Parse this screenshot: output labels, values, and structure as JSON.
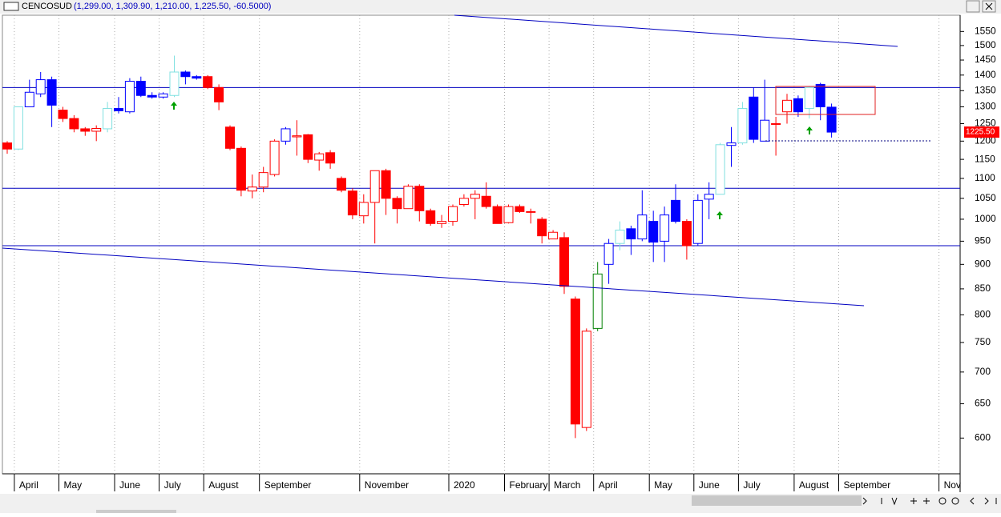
{
  "chart_data": {
    "type": "candlestick",
    "title": "CENCOSUD",
    "subtitle": "(1,299.00, 1,309.90, 1,210.00, 1,225.50, -60.5000)",
    "categories": [
      null,
      "April",
      null,
      null,
      null,
      "May",
      null,
      null,
      null,
      null,
      "June",
      null,
      null,
      null,
      "July",
      null,
      null,
      null,
      "August",
      null,
      null,
      null,
      null,
      "September",
      null,
      null,
      null,
      null,
      null,
      null,
      null,
      null,
      "November",
      null,
      null,
      null,
      null,
      null,
      null,
      null,
      "2020",
      null,
      null,
      null,
      null,
      "February",
      null,
      null,
      null,
      "March",
      null,
      null,
      null,
      "April",
      null,
      null,
      null,
      null,
      "May",
      null,
      null,
      null,
      "June",
      null,
      null,
      null,
      "July",
      null,
      null,
      null,
      null,
      "August",
      null,
      null,
      null,
      "September",
      null,
      null,
      null,
      null,
      null,
      null,
      null,
      null,
      "Nov",
      null
    ],
    "open": [
      1195,
      1178,
      1300,
      1340,
      1385,
      1290,
      1265,
      1235,
      1228,
      1235,
      1295,
      1285,
      1380,
      1335,
      1330,
      1335,
      1410,
      1395,
      1395,
      1360,
      1240,
      1180,
      1068,
      1078,
      1110,
      1200,
      1212,
      1218,
      1148,
      1168,
      1100,
      1068,
      1008,
      1040,
      1120,
      1050,
      1025,
      1080,
      1020,
      990,
      995,
      1035,
      1050,
      1055,
      1030,
      992,
      1030,
      1018,
      1000,
      955,
      958,
      830,
      615,
      775,
      900,
      945,
      978,
      955,
      995,
      950,
      1045,
      995,
      945,
      1048,
      1060,
      1188,
      1195,
      1330,
      1200,
      1250,
      1285,
      1325,
      1295,
      1370,
      1299,
      null,
      null,
      null,
      null,
      null,
      null,
      null,
      null,
      null,
      null,
      null
    ],
    "high": [
      1200,
      1300,
      1385,
      1410,
      1395,
      1300,
      1275,
      1240,
      1245,
      1315,
      1330,
      1390,
      1395,
      1345,
      1345,
      1465,
      1415,
      1400,
      1400,
      1370,
      1245,
      1185,
      1110,
      1130,
      1205,
      1240,
      1260,
      1220,
      1170,
      1175,
      1105,
      1075,
      1060,
      1120,
      1125,
      1055,
      1085,
      1085,
      1025,
      1010,
      1035,
      1060,
      1070,
      1090,
      1035,
      1035,
      1035,
      1025,
      1005,
      975,
      970,
      835,
      775,
      905,
      955,
      995,
      985,
      1070,
      1020,
      1030,
      1085,
      1000,
      1060,
      1090,
      1195,
      1240,
      1315,
      1360,
      1385,
      1270,
      1340,
      1335,
      1365,
      1375,
      1309.9,
      null,
      null,
      null,
      null,
      null,
      null,
      null,
      null,
      null,
      null,
      null
    ],
    "low": [
      1165,
      1175,
      1300,
      1330,
      1240,
      1255,
      1225,
      1215,
      1200,
      1225,
      1280,
      1280,
      1330,
      1325,
      1325,
      1330,
      1370,
      1385,
      1355,
      1290,
      1175,
      1055,
      1050,
      1065,
      1105,
      1190,
      1160,
      1140,
      1120,
      1125,
      1065,
      1000,
      990,
      945,
      1010,
      990,
      1025,
      995,
      985,
      980,
      985,
      1030,
      1000,
      1025,
      990,
      990,
      1015,
      990,
      945,
      955,
      840,
      600,
      610,
      770,
      860,
      930,
      920,
      950,
      905,
      905,
      990,
      910,
      940,
      1000,
      1060,
      1130,
      1190,
      1195,
      1200,
      1160,
      1250,
      1270,
      1265,
      1260,
      1210,
      null,
      null,
      null,
      null,
      null,
      null,
      null,
      null,
      null,
      null,
      null
    ],
    "close": [
      1178,
      1300,
      1345,
      1385,
      1305,
      1265,
      1235,
      1228,
      1236,
      1295,
      1288,
      1380,
      1335,
      1330,
      1340,
      1410,
      1395,
      1390,
      1360,
      1315,
      1180,
      1070,
      1078,
      1115,
      1200,
      1235,
      1215,
      1150,
      1165,
      1140,
      1070,
      1010,
      1040,
      1120,
      1050,
      1025,
      1080,
      1020,
      990,
      995,
      1030,
      1050,
      1060,
      1030,
      990,
      1030,
      1018,
      1017,
      962,
      970,
      855,
      620,
      770,
      880,
      945,
      975,
      955,
      1010,
      948,
      1010,
      995,
      940,
      1045,
      1060,
      1190,
      1195,
      1295,
      1205,
      1260,
      1248,
      1320,
      1285,
      1360,
      1300,
      1225.5,
      null,
      null,
      null,
      null,
      null,
      null,
      null,
      null,
      null,
      null,
      null
    ],
    "colors": [
      "#ff0000",
      "#80e0e0",
      "#0000ff",
      "#0000ff",
      "#0000ff",
      "#ff0000",
      "#ff0000",
      "#ff0000",
      "#ff0000",
      "#80e0e0",
      "#0000ff",
      "#0000ff",
      "#0000ff",
      "#0000ff",
      "#0000ff",
      "#80e0e0",
      "#0000ff",
      "#0000ff",
      "#ff0000",
      "#ff0000",
      "#ff0000",
      "#ff0000",
      "#ff0000",
      "#ff0000",
      "#ff0000",
      "#0000ff",
      "#ff0000",
      "#ff0000",
      "#ff0000",
      "#ff0000",
      "#ff0000",
      "#ff0000",
      "#ff0000",
      "#ff0000",
      "#ff0000",
      "#ff0000",
      "#ff0000",
      "#ff0000",
      "#ff0000",
      "#ff0000",
      "#ff0000",
      "#ff0000",
      "#ff0000",
      "#ff0000",
      "#ff0000",
      "#ff0000",
      "#ff0000",
      "#ff0000",
      "#ff0000",
      "#ff0000",
      "#ff0000",
      "#ff0000",
      "#ff0000",
      "#008000",
      "#0000ff",
      "#80e0e0",
      "#0000ff",
      "#0000ff",
      "#0000ff",
      "#0000ff",
      "#0000ff",
      "#ff0000",
      "#0000ff",
      "#0000ff",
      "#80e0e0",
      "#0000ff",
      "#80e0e0",
      "#0000ff",
      "#0000ff",
      "#ff0000",
      "#ff0000",
      "#0000ff",
      "#80e0e0",
      "#0000ff",
      "#0000ff",
      null,
      null,
      null,
      null,
      null,
      null,
      null,
      null,
      null,
      null,
      null
    ],
    "hlines": [
      1360,
      1075,
      940
    ],
    "hline_color": "#0000c0",
    "last_label": "1225.50",
    "last_label_color": "#ff0000",
    "ylim": [
      552,
      1610
    ],
    "log_scale": true,
    "yticks": [
      600,
      650,
      700,
      750,
      800,
      850,
      900,
      950,
      1000,
      1050,
      1100,
      1150,
      1200,
      1250,
      1300,
      1350,
      1400,
      1450,
      1500,
      1550
    ],
    "grid": true
  }
}
